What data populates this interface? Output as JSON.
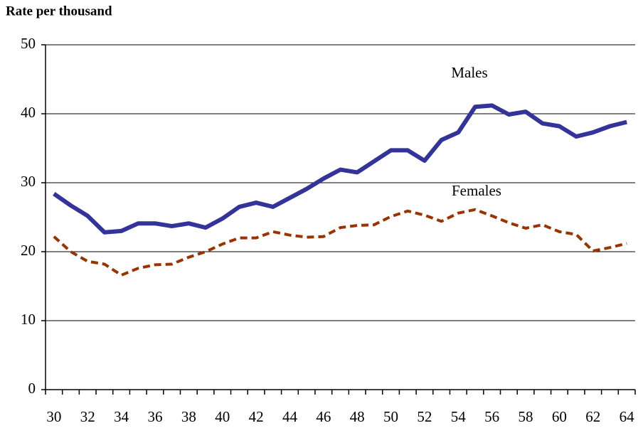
{
  "chart_data": {
    "type": "line",
    "y_label": "Rate per thousand",
    "categories": [
      "30",
      null,
      "32",
      null,
      "34",
      null,
      "36",
      null,
      "38",
      null,
      "40",
      null,
      "42",
      null,
      "44",
      null,
      "46",
      null,
      "48",
      null,
      "50",
      null,
      "52",
      null,
      "54",
      null,
      "56",
      null,
      "58",
      null,
      "60",
      null,
      "62",
      null,
      "64"
    ],
    "series": [
      {
        "name": "Males",
        "color": "#333399",
        "style": "solid",
        "values": [
          28.4,
          26.7,
          25.2,
          22.8,
          23.0,
          24.1,
          24.1,
          23.7,
          24.1,
          23.5,
          24.8,
          26.5,
          27.1,
          26.5,
          27.8,
          29.1,
          30.6,
          31.9,
          31.5,
          33.1,
          34.7,
          34.7,
          33.2,
          36.2,
          37.3,
          41.0,
          41.2,
          39.9,
          40.3,
          38.6,
          38.2,
          36.7,
          37.3,
          38.2,
          38.8
        ]
      },
      {
        "name": "Females",
        "color": "#993300",
        "style": "dashed",
        "values": [
          22.2,
          20.0,
          18.6,
          18.2,
          16.6,
          17.6,
          18.1,
          18.2,
          19.2,
          20.0,
          21.1,
          22.0,
          22.0,
          22.9,
          22.4,
          22.1,
          22.2,
          23.5,
          23.8,
          23.9,
          25.1,
          25.9,
          25.3,
          24.4,
          25.6,
          26.1,
          25.2,
          24.2,
          23.4,
          23.9,
          22.9,
          22.5,
          20.1,
          20.6,
          21.2
        ]
      }
    ],
    "ylim": [
      0,
      50
    ],
    "yticks": [
      0,
      10,
      20,
      30,
      40,
      50
    ],
    "grid": true
  }
}
